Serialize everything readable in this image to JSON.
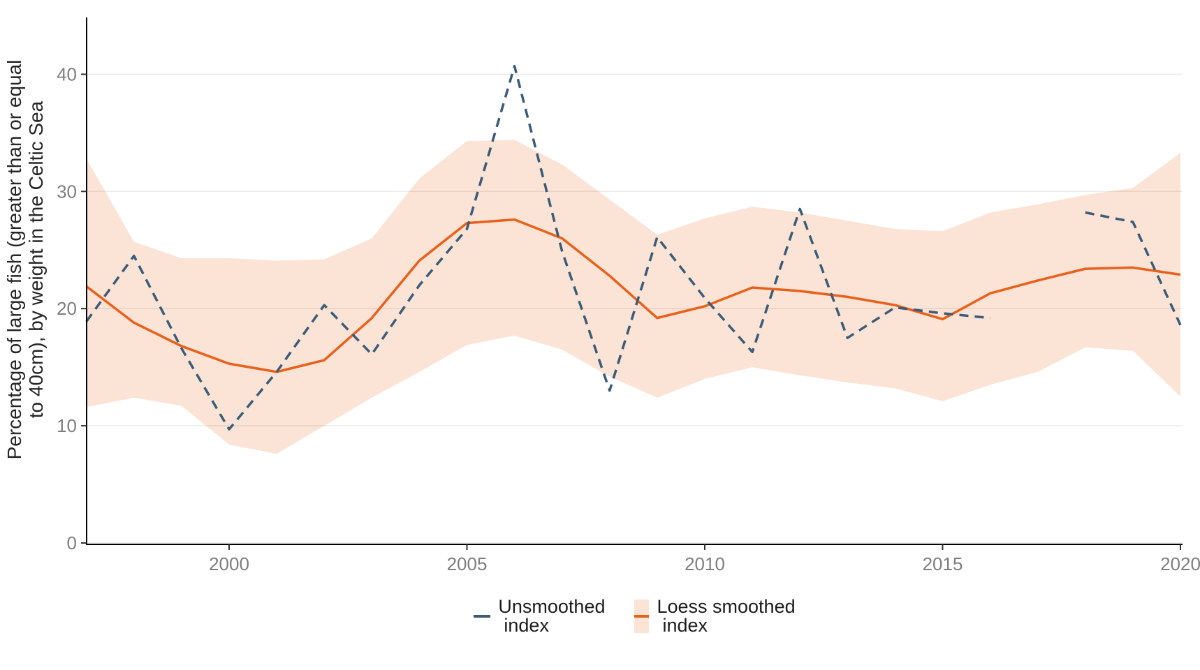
{
  "y_axis": {
    "title_line1": "Percentage of large fish (greater than or equal",
    "title_line2": "to 40cm), by weight in the Celtic Sea",
    "ticks": [
      0,
      10,
      20,
      30,
      40
    ],
    "tick_color": "#7e7e7e"
  },
  "x_axis": {
    "ticks": [
      2000,
      2005,
      2010,
      2015,
      2020
    ],
    "tick_color": "#7e7e7e"
  },
  "legend": {
    "unsmoothed_label_line1": "Unsmoothed",
    "unsmoothed_label_line2": "index",
    "loess_label_line1": "Loess smoothed",
    "loess_label_line2": "index"
  },
  "colors": {
    "unsmoothed_line": "#3a5c78",
    "loess_line": "#e8611c",
    "ribbon_fill": "#fbe3d5",
    "axis_line": "#000000",
    "gridline": "rgba(0,0,0,0.075)"
  },
  "chart_data": {
    "type": "line",
    "title": "",
    "xlabel": "",
    "ylabel": "Percentage of large fish (greater than or equal to 40cm), by weight in the Celtic Sea",
    "x": [
      1997,
      1998,
      1999,
      2000,
      2001,
      2002,
      2003,
      2004,
      2005,
      2006,
      2007,
      2008,
      2009,
      2010,
      2011,
      2012,
      2013,
      2014,
      2015,
      2016,
      2017,
      2018,
      2019,
      2020
    ],
    "series": [
      {
        "name": "Unsmoothed index",
        "style": "dashed",
        "color": "#3a5c78",
        "values": [
          18.9,
          24.5,
          16.6,
          9.7,
          14.6,
          20.3,
          16.1,
          22.0,
          26.8,
          40.7,
          24.9,
          13.0,
          26.1,
          20.9,
          16.3,
          28.5,
          17.5,
          20.1,
          19.6,
          19.2,
          null,
          28.2,
          27.4,
          18.6
        ]
      },
      {
        "name": "Loess smoothed index",
        "style": "solid",
        "color": "#e8611c",
        "values": [
          21.9,
          18.8,
          16.8,
          15.3,
          14.6,
          15.6,
          19.2,
          24.1,
          27.3,
          27.6,
          26.0,
          22.8,
          19.2,
          20.2,
          21.8,
          21.5,
          21.0,
          20.3,
          19.1,
          21.3,
          22.4,
          23.4,
          23.5,
          22.9
        ]
      }
    ],
    "ribbon": {
      "name": "Loess smoothed index confidence band",
      "fill": "#fbe3d5",
      "upper": [
        32.8,
        25.7,
        24.3,
        24.3,
        24.1,
        24.2,
        26.0,
        31.1,
        34.3,
        34.4,
        32.3,
        29.3,
        26.3,
        27.7,
        28.7,
        28.2,
        27.5,
        26.8,
        26.6,
        28.2,
        28.9,
        29.7,
        30.3,
        33.3
      ],
      "lower": [
        11.6,
        12.4,
        11.7,
        8.4,
        7.6,
        10.0,
        12.4,
        14.6,
        16.9,
        17.7,
        16.5,
        14.2,
        12.4,
        14.0,
        15.0,
        14.3,
        13.7,
        13.2,
        12.1,
        13.5,
        14.6,
        16.7,
        16.4,
        12.5
      ]
    },
    "xlim": [
      1997,
      2020
    ],
    "ylim": [
      0,
      45
    ],
    "grid": "horizontal-major-only",
    "legend_position": "bottom-center"
  }
}
